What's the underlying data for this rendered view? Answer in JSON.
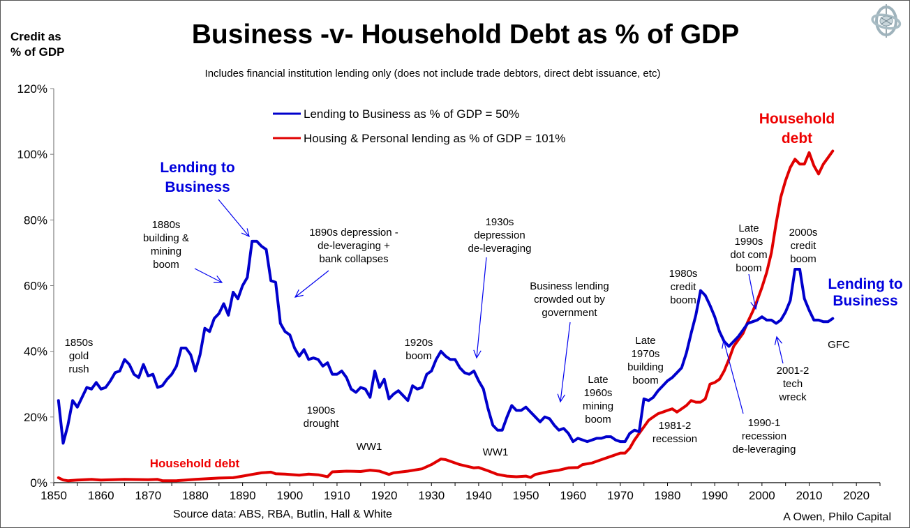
{
  "header": {
    "title": "Business -v- Household Debt as % of GDP",
    "subtitle": "Includes financial institution lending only (does not include  trade debtors, direct debt issuance, etc)",
    "y_axis_caption_line1": "Credit as",
    "y_axis_caption_line2": "% of GDP",
    "logo_icon": "gyroscope-logo-icon"
  },
  "footer": {
    "source": "Source data:  ABS, RBA,  Butlin, Hall & White",
    "credit": "A Owen,  Philo Capital"
  },
  "colors": {
    "business": "#0000cc",
    "household": "#e00000",
    "annotation_blue": "#0000dd",
    "annotation_red": "#ee0000",
    "axis": "#808080"
  },
  "chart_data": {
    "type": "line",
    "title": "Business -v- Household Debt as % of GDP",
    "subtitle": "Includes financial institution lending only (does not include  trade debtors, direct debt issuance, etc)",
    "xlabel": "",
    "ylabel": "Credit as % of GDP",
    "xlim": [
      1850,
      2025
    ],
    "ylim": [
      0,
      120
    ],
    "x_ticks": [
      1850,
      1860,
      1870,
      1880,
      1890,
      1900,
      1910,
      1920,
      1930,
      1940,
      1950,
      1960,
      1970,
      1980,
      1990,
      2000,
      2010,
      2020
    ],
    "y_ticks": [
      0,
      20,
      40,
      60,
      80,
      100,
      120
    ],
    "y_tick_labels": [
      "0%",
      "20%",
      "40%",
      "60%",
      "80%",
      "100%",
      "120%"
    ],
    "grid": false,
    "legend_position": "top-center",
    "series": [
      {
        "name": "Lending to Business as % of GDP = 50%",
        "color": "#0000cc",
        "x": [
          1851,
          1852,
          1853,
          1854,
          1855,
          1856,
          1857,
          1858,
          1859,
          1860,
          1861,
          1862,
          1863,
          1864,
          1865,
          1866,
          1867,
          1868,
          1869,
          1870,
          1871,
          1872,
          1873,
          1874,
          1875,
          1876,
          1877,
          1878,
          1879,
          1880,
          1881,
          1882,
          1883,
          1884,
          1885,
          1886,
          1887,
          1888,
          1889,
          1890,
          1891,
          1892,
          1893,
          1894,
          1895,
          1896,
          1897,
          1898,
          1899,
          1900,
          1901,
          1902,
          1903,
          1904,
          1905,
          1906,
          1907,
          1908,
          1909,
          1910,
          1911,
          1912,
          1913,
          1914,
          1915,
          1916,
          1917,
          1918,
          1919,
          1920,
          1921,
          1922,
          1923,
          1924,
          1925,
          1926,
          1927,
          1928,
          1929,
          1930,
          1931,
          1932,
          1933,
          1934,
          1935,
          1936,
          1937,
          1938,
          1939,
          1940,
          1941,
          1942,
          1943,
          1944,
          1945,
          1946,
          1947,
          1948,
          1949,
          1950,
          1951,
          1952,
          1953,
          1954,
          1955,
          1956,
          1957,
          1958,
          1959,
          1960,
          1961,
          1962,
          1963,
          1964,
          1965,
          1966,
          1967,
          1968,
          1969,
          1970,
          1971,
          1972,
          1973,
          1974,
          1975,
          1976,
          1977,
          1978,
          1979,
          1980,
          1981,
          1982,
          1983,
          1984,
          1985,
          1986,
          1987,
          1988,
          1989,
          1990,
          1991,
          1992,
          1993,
          1994,
          1995,
          1996,
          1997,
          1998,
          1999,
          2000,
          2001,
          2002,
          2003,
          2004,
          2005,
          2006,
          2007,
          2008,
          2009,
          2010,
          2011,
          2012,
          2013,
          2014,
          2015
        ],
        "values": [
          25,
          12,
          17.5,
          25,
          23,
          26,
          29,
          28.5,
          30.5,
          28.5,
          29,
          31,
          33.5,
          34,
          37.5,
          36,
          33,
          32,
          36,
          32.5,
          33,
          29,
          29.5,
          31.5,
          33,
          35.5,
          41,
          41,
          39,
          34,
          39,
          47,
          46,
          50,
          51.5,
          54.5,
          51,
          58,
          56,
          60,
          62.5,
          73.5,
          73.5,
          72,
          71,
          61.5,
          61,
          48.5,
          46,
          45,
          41,
          38.5,
          40.5,
          37.5,
          38,
          37.5,
          35.5,
          36.5,
          33,
          33,
          34,
          32,
          28.5,
          27.5,
          29,
          28.5,
          26,
          34,
          29,
          31.5,
          25.5,
          27,
          28,
          26.5,
          25,
          29.5,
          28.5,
          29,
          33,
          34,
          37.5,
          40,
          38.5,
          37.5,
          37.5,
          35,
          33.5,
          33,
          34,
          31,
          28.5,
          22.5,
          17.5,
          16,
          16,
          20,
          23.5,
          22,
          22,
          23,
          21.5,
          20,
          18.5,
          20,
          19.5,
          17.5,
          16,
          16.5,
          15,
          12.5,
          13.5,
          13,
          12.5,
          13,
          13.5,
          13.5,
          14,
          14,
          13,
          12.5,
          12.5,
          15,
          16,
          15.5,
          25.5,
          25,
          26,
          28,
          29.5,
          31,
          32,
          33.5,
          35,
          39.5,
          45.5,
          51,
          58.5,
          57,
          54,
          50.5,
          46,
          43,
          41.5,
          43,
          44.5,
          46.5,
          48.5,
          49,
          49.5,
          50.5,
          49.5,
          49.5,
          48.5,
          49.5,
          52,
          55.5,
          65,
          65,
          56,
          52.5,
          49.5,
          49.5,
          49,
          49,
          50
        ]
      },
      {
        "name": "Housing & Personal lending as % of GDP = 101%",
        "color": "#e00000",
        "x": [
          1851,
          1852,
          1853,
          1855,
          1858,
          1860,
          1865,
          1870,
          1872,
          1873,
          1876,
          1880,
          1885,
          1888,
          1890,
          1892,
          1894,
          1896,
          1897,
          1899,
          1902,
          1904,
          1906,
          1908,
          1909,
          1912,
          1915,
          1917,
          1919,
          1921,
          1922,
          1925,
          1928,
          1930,
          1932,
          1933,
          1936,
          1939,
          1940,
          1942,
          1944,
          1946,
          1948,
          1950,
          1951,
          1952,
          1955,
          1957,
          1959,
          1961,
          1962,
          1964,
          1966,
          1968,
          1970,
          1971,
          1972,
          1973,
          1974,
          1975,
          1976,
          1977,
          1978,
          1979,
          1980,
          1981,
          1982,
          1983,
          1984,
          1985,
          1986,
          1987,
          1988,
          1989,
          1990,
          1991,
          1992,
          1993,
          1994,
          1995,
          1996,
          1997,
          1998,
          1999,
          2000,
          2001,
          2002,
          2003,
          2004,
          2005,
          2006,
          2007,
          2008,
          2009,
          2010,
          2011,
          2012,
          2013,
          2014,
          2015
        ],
        "values": [
          1.5,
          0.8,
          0.6,
          0.8,
          1,
          0.8,
          1,
          0.9,
          1,
          0.6,
          0.6,
          1,
          1.4,
          1.5,
          2,
          2.5,
          3,
          3.2,
          2.7,
          2.6,
          2.3,
          2.6,
          2.4,
          1.8,
          3.3,
          3.5,
          3.4,
          3.8,
          3.5,
          2.5,
          3,
          3.5,
          4.2,
          5.5,
          7.2,
          7,
          5.5,
          4.5,
          4.6,
          3.6,
          2.5,
          2,
          1.8,
          2,
          1.6,
          2.5,
          3.4,
          3.8,
          4.5,
          4.6,
          5.5,
          6,
          7,
          8,
          9,
          9,
          10.5,
          13,
          15,
          17,
          19,
          20,
          21,
          21.5,
          22,
          22.5,
          21.5,
          22.5,
          23.5,
          25,
          24.5,
          24.5,
          25.5,
          30,
          30.5,
          31.5,
          34,
          37.5,
          41.5,
          43.5,
          45.5,
          49,
          52,
          55.5,
          59.5,
          64,
          70,
          79,
          87,
          92,
          96,
          98.5,
          97,
          97,
          100.5,
          96.5,
          94,
          97,
          99,
          101
        ]
      }
    ],
    "annotations": {
      "lending_to_business_1": [
        "Lending to",
        "Business"
      ],
      "lending_to_business_2": [
        "Lending to",
        "Business"
      ],
      "household_debt_top": [
        "Household",
        "debt"
      ],
      "household_debt_bottom": "Household debt",
      "gold_rush": [
        "1850s",
        "gold",
        "rush"
      ],
      "boom_1880s": [
        "1880s",
        "building &",
        "mining",
        "boom"
      ],
      "depression_1890s": [
        "1890s depression -",
        "de-leveraging +",
        "bank collapses"
      ],
      "drought_1900s": [
        "1900s",
        "drought"
      ],
      "ww1": "WW1",
      "ww1_second": "WW1",
      "boom_1920s": [
        "1920s",
        "boom"
      ],
      "depression_1930s": [
        "1930s",
        "depression",
        "de-leveraging"
      ],
      "crowded_out": [
        "Business lending",
        "crowded out by",
        "government"
      ],
      "mining_1960s": [
        "Late",
        "1960s",
        "mining",
        "boom"
      ],
      "building_1970s": [
        "Late",
        "1970s",
        "building",
        "boom"
      ],
      "recession_1981": [
        "1981-2",
        "recession"
      ],
      "credit_1980s": [
        "1980s",
        "credit",
        "boom"
      ],
      "recession_1990": [
        "1990-1",
        "recession",
        "de-leveraging"
      ],
      "dotcom_1990s": [
        "Late",
        "1990s",
        "dot com",
        "boom"
      ],
      "credit_2000s": [
        "2000s",
        "credit",
        "boom"
      ],
      "tech_wreck": [
        "2001-2",
        "tech",
        "wreck"
      ],
      "gfc": "GFC"
    }
  }
}
